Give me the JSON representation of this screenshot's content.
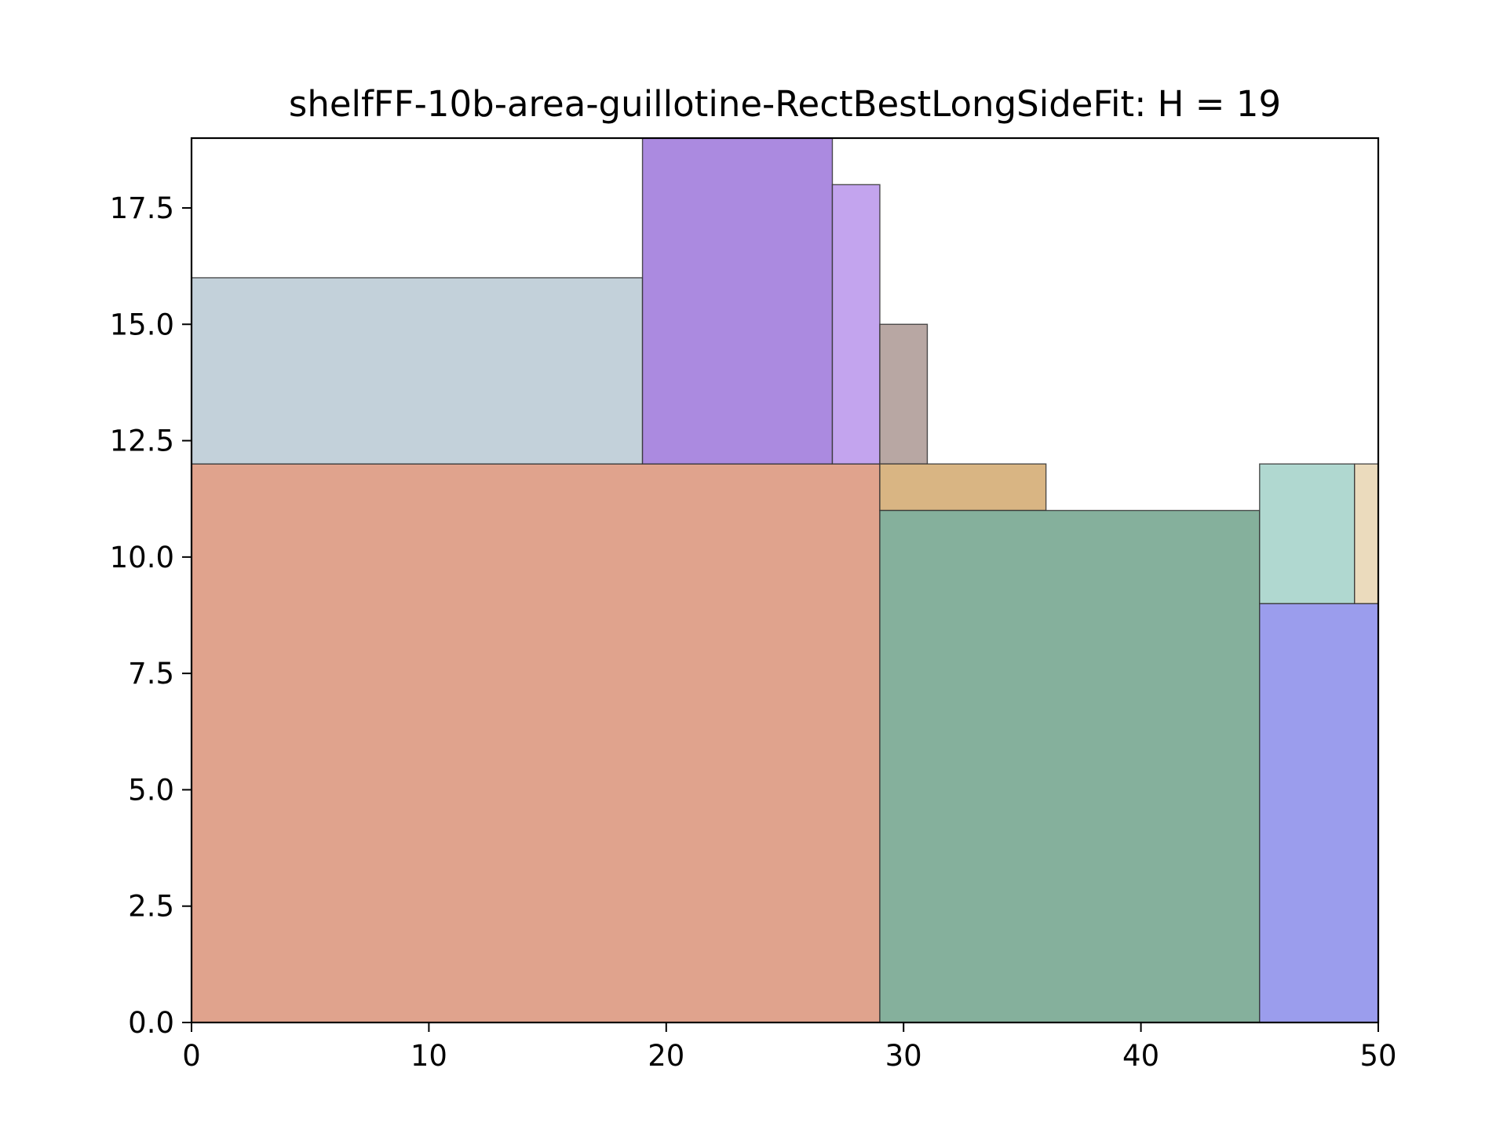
{
  "chart_data": {
    "type": "rectangles",
    "title": "shelfFF-10b-area-guillotine-RectBestLongSideFit: H = 19",
    "xlim": [
      0,
      50
    ],
    "ylim": [
      0,
      19
    ],
    "x_ticks": [
      0,
      10,
      20,
      30,
      40,
      50
    ],
    "x_tick_labels": [
      "0",
      "10",
      "20",
      "30",
      "40",
      "50"
    ],
    "y_ticks": [
      0,
      2.5,
      5,
      7.5,
      10,
      12.5,
      15,
      17.5
    ],
    "y_tick_labels": [
      "0.0",
      "2.5",
      "5.0",
      "7.5",
      "10.0",
      "12.5",
      "15.0",
      "17.5"
    ],
    "grid": false,
    "rectangles": [
      {
        "x": 0,
        "y": 0,
        "w": 29,
        "h": 12,
        "color": "#e0a38d"
      },
      {
        "x": 0,
        "y": 12,
        "w": 19,
        "h": 4,
        "color": "#c3d1da"
      },
      {
        "x": 19,
        "y": 12,
        "w": 8,
        "h": 7,
        "color": "#ab8ae0"
      },
      {
        "x": 27,
        "y": 12,
        "w": 2,
        "h": 6,
        "color": "#c3a4ee"
      },
      {
        "x": 29,
        "y": 12,
        "w": 2,
        "h": 3,
        "color": "#b8a7a3"
      },
      {
        "x": 29,
        "y": 11,
        "w": 7,
        "h": 1,
        "color": "#d9b583"
      },
      {
        "x": 29,
        "y": 0,
        "w": 16,
        "h": 11,
        "color": "#85b09c"
      },
      {
        "x": 45,
        "y": 0,
        "w": 5,
        "h": 9,
        "color": "#9b9ded"
      },
      {
        "x": 45,
        "y": 9,
        "w": 4,
        "h": 3,
        "color": "#b0d8d0"
      },
      {
        "x": 49,
        "y": 9,
        "w": 1,
        "h": 3,
        "color": "#ebdbbd"
      }
    ]
  }
}
